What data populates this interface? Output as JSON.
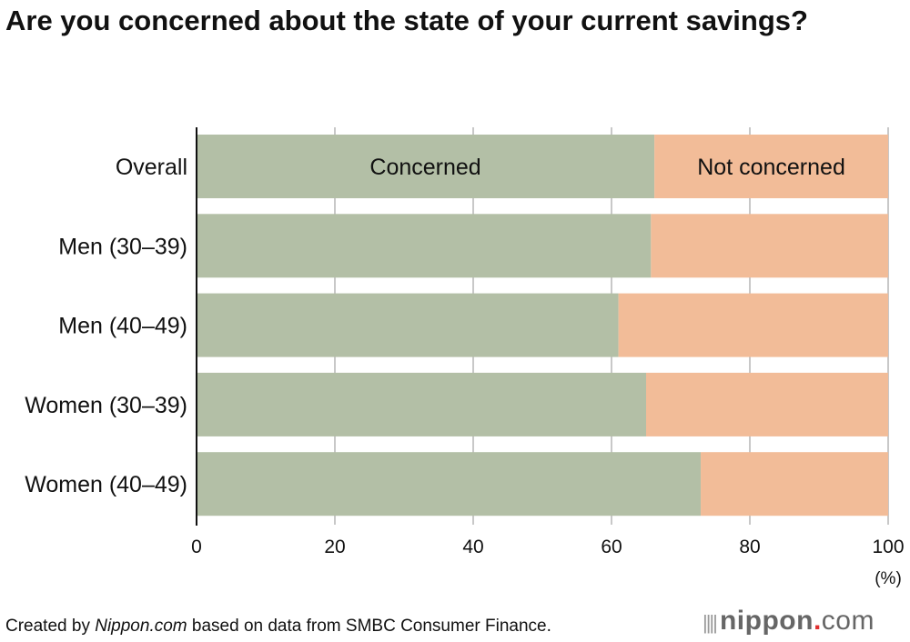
{
  "title": "Are you concerned about the state of your current savings?",
  "footer": {
    "prefix": "Created by ",
    "source_site": "Nippon.com",
    "suffix": " based on data from SMBC Consumer Finance."
  },
  "logo": {
    "name": "nippon",
    "dot": ".",
    "tld": "com"
  },
  "chart_data": {
    "type": "bar",
    "orientation": "horizontal-stacked-100",
    "categories": [
      "Overall",
      "Men (30–39)",
      "Men (40–49)",
      "Women (30–39)",
      "Women (40–49)"
    ],
    "series": [
      {
        "name": "Concerned",
        "color": "#b3bfa6",
        "values": [
          66.2,
          65.7,
          61.0,
          65.0,
          72.9
        ]
      },
      {
        "name": "Not concerned",
        "color": "#f2bc98",
        "values": [
          33.8,
          34.3,
          39.0,
          35.0,
          27.1
        ]
      }
    ],
    "xlim": [
      0,
      100
    ],
    "xticks": [
      "0",
      "20",
      "40",
      "60",
      "80",
      "100"
    ],
    "xunit": "(%)",
    "grid": true
  }
}
